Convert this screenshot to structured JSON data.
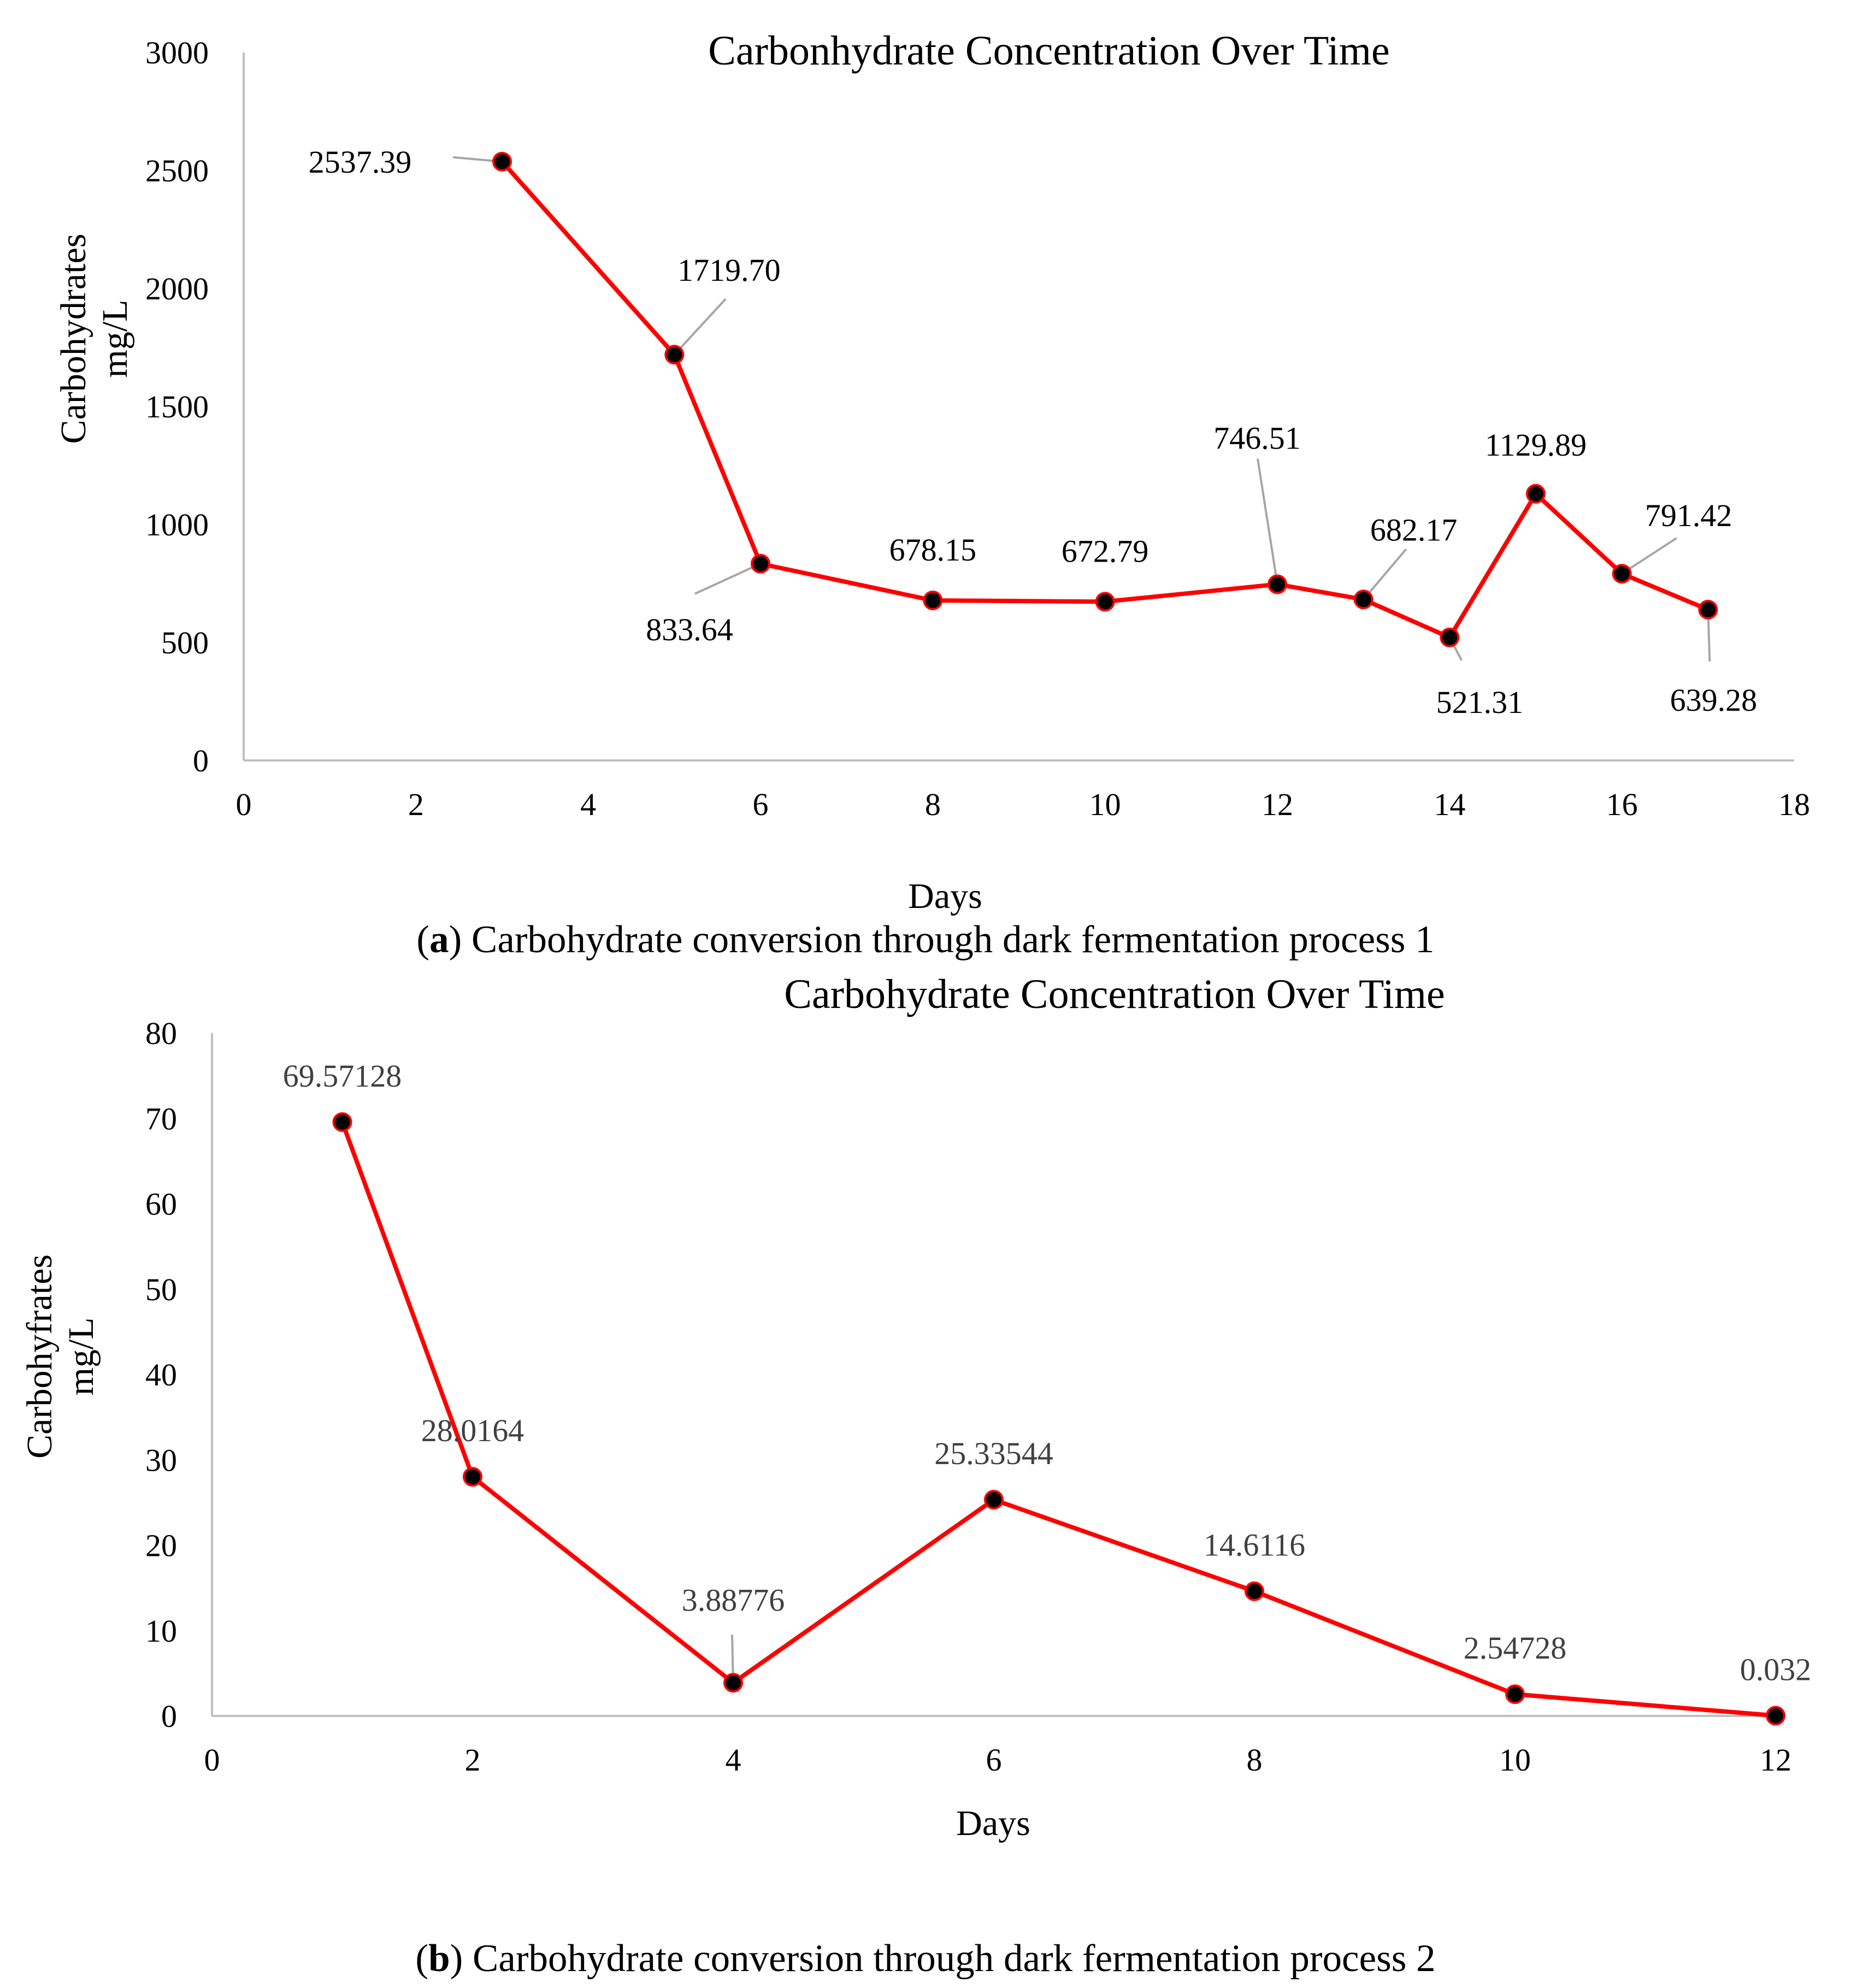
{
  "chart_data": [
    {
      "type": "line",
      "title": "Carbonhydrate Concentration Over Time",
      "xlabel": "Days",
      "ylabel_lines": [
        "Carbohydrates",
        "mg/L"
      ],
      "xlim": [
        0,
        18
      ],
      "ylim": [
        0,
        3000
      ],
      "xticks": [
        0,
        2,
        4,
        6,
        8,
        10,
        12,
        14,
        16,
        18
      ],
      "yticks": [
        0,
        500,
        1000,
        1500,
        2000,
        2500,
        3000
      ],
      "grid": false,
      "line_color": "#ff0000",
      "marker_color": "#000000",
      "leader_color": "#a6a6a6",
      "label_color": "#000000",
      "x": [
        3,
        5,
        6,
        8,
        10,
        12,
        13,
        14,
        15,
        16,
        17
      ],
      "values": [
        2537.39,
        1719.7,
        833.64,
        678.15,
        672.79,
        746.51,
        682.17,
        521.31,
        1129.89,
        791.42,
        639.28
      ],
      "data_labels": [
        "2537.39",
        "1719.70",
        "833.64",
        "678.15",
        "672.79",
        "746.51",
        "682.17",
        "521.31",
        "1129.89",
        "791.42",
        "639.28"
      ],
      "caption_letter": "a",
      "caption_text": " Carbohydrate conversion through dark fermentation process 1"
    },
    {
      "type": "line",
      "title": "Carbohydrate Concentration Over Time",
      "xlabel": "Days",
      "ylabel_lines": [
        "Carbohyfrates",
        "mg/L"
      ],
      "xlim": [
        0,
        12
      ],
      "ylim": [
        0,
        80
      ],
      "xticks": [
        0,
        2,
        4,
        6,
        8,
        10,
        12
      ],
      "yticks": [
        0,
        10,
        20,
        30,
        40,
        50,
        60,
        70,
        80
      ],
      "grid": false,
      "line_color": "#ff0000",
      "marker_color": "#000000",
      "leader_color": "#a6a6a6",
      "label_color": "#404040",
      "x": [
        1,
        2,
        4,
        6,
        8,
        10,
        12
      ],
      "values": [
        69.57128,
        28.0164,
        3.88776,
        25.33544,
        14.6116,
        2.54728,
        0.032
      ],
      "data_labels": [
        "69.57128",
        "28.0164",
        "3.88776",
        "25.33544",
        "14.6116",
        "2.54728",
        "0.032"
      ],
      "caption_letter": "b",
      "caption_text": " Carbohydrate conversion through dark fermentation process 2"
    }
  ]
}
